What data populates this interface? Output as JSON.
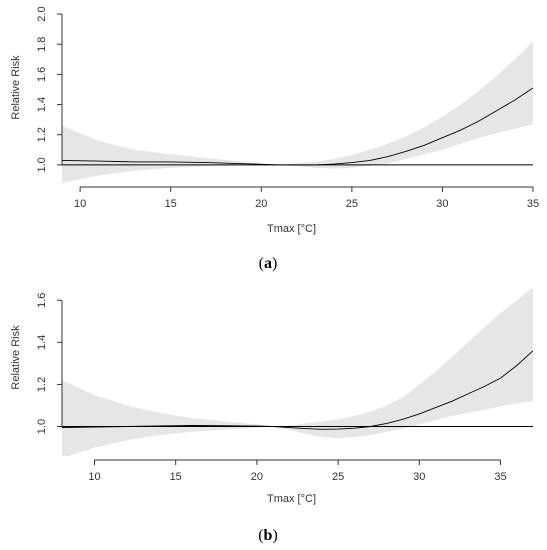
{
  "chart_data": [
    {
      "type": "line",
      "panel_label": "(a)",
      "panel_letter": "a",
      "xlabel": "Tmax [°C]",
      "ylabel": "Relative Risk",
      "xlim": [
        9,
        35
      ],
      "ylim": [
        0.88,
        2.04
      ],
      "x_ticks": [
        10,
        15,
        20,
        25,
        30,
        35
      ],
      "y_ticks": [
        1.0,
        1.2,
        1.4,
        1.6,
        1.8,
        2.0
      ],
      "reference_line": 1.0,
      "grid": false,
      "series": [
        {
          "x": [
            9,
            11,
            13,
            15,
            17,
            19,
            20,
            21,
            22,
            23,
            24,
            25,
            26,
            27,
            28,
            29,
            30,
            31,
            32,
            33,
            34,
            35
          ],
          "y": [
            1.03,
            1.025,
            1.02,
            1.02,
            1.015,
            1.008,
            1.004,
            1.0,
            1.0,
            1.0,
            1.005,
            1.015,
            1.03,
            1.055,
            1.09,
            1.13,
            1.18,
            1.23,
            1.29,
            1.36,
            1.43,
            1.51
          ],
          "lower": [
            0.88,
            0.93,
            0.96,
            0.98,
            0.99,
            0.995,
            0.998,
            1.0,
            0.99,
            0.98,
            0.975,
            0.98,
            0.995,
            1.01,
            1.04,
            1.07,
            1.1,
            1.14,
            1.18,
            1.21,
            1.24,
            1.27
          ],
          "upper": [
            1.26,
            1.16,
            1.1,
            1.07,
            1.045,
            1.02,
            1.01,
            1.0,
            1.01,
            1.02,
            1.04,
            1.065,
            1.1,
            1.14,
            1.19,
            1.25,
            1.32,
            1.4,
            1.49,
            1.59,
            1.7,
            1.82
          ]
        }
      ]
    },
    {
      "type": "line",
      "panel_label": "(b)",
      "panel_letter": "b",
      "xlabel": "Tmax [°C]",
      "ylabel": "Relative Risk",
      "xlim": [
        8,
        37
      ],
      "ylim": [
        0.86,
        1.72
      ],
      "x_ticks": [
        10,
        15,
        20,
        25,
        30,
        35
      ],
      "y_ticks": [
        1.0,
        1.2,
        1.4,
        1.6
      ],
      "reference_line": 1.0,
      "grid": false,
      "series": [
        {
          "x": [
            8,
            10,
            12,
            14,
            16,
            18,
            20,
            21,
            22,
            23,
            24,
            25,
            26,
            27,
            28,
            29,
            30,
            31,
            32,
            33,
            34,
            35,
            36,
            37
          ],
          "y": [
            0.995,
            0.998,
            1.0,
            1.003,
            1.005,
            1.004,
            1.002,
            1.0,
            0.995,
            0.99,
            0.987,
            0.988,
            0.992,
            1.0,
            1.015,
            1.035,
            1.06,
            1.09,
            1.12,
            1.155,
            1.19,
            1.23,
            1.29,
            1.36
          ],
          "lower": [
            0.85,
            0.9,
            0.935,
            0.96,
            0.975,
            0.985,
            0.995,
            1.0,
            0.985,
            0.965,
            0.95,
            0.945,
            0.95,
            0.96,
            0.975,
            0.99,
            1.01,
            1.03,
            1.05,
            1.065,
            1.08,
            1.095,
            1.11,
            1.12
          ],
          "upper": [
            1.22,
            1.15,
            1.1,
            1.065,
            1.04,
            1.025,
            1.01,
            1.0,
            1.005,
            1.015,
            1.025,
            1.035,
            1.05,
            1.07,
            1.1,
            1.14,
            1.2,
            1.26,
            1.33,
            1.4,
            1.47,
            1.54,
            1.6,
            1.66
          ]
        }
      ]
    }
  ]
}
